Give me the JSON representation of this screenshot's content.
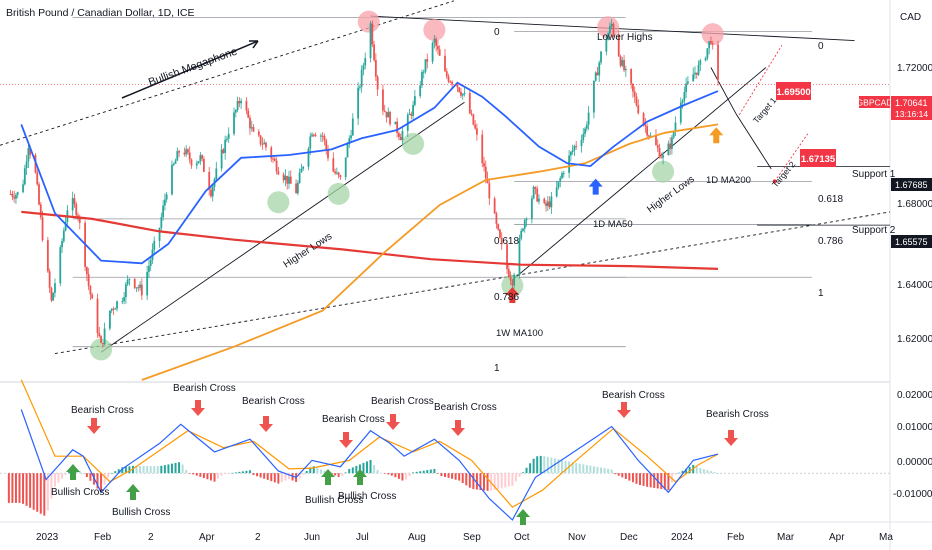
{
  "header": {
    "title": "British Pound / Canadian Dollar, 1D, ICE",
    "currency": "CAD"
  },
  "price_axis": {
    "ticks": [
      "1.72000",
      "1.70000",
      "1.68000",
      "1.66000",
      "1.64000",
      "1.62000"
    ],
    "symbol_tag": "GBPCAD",
    "current_price": "1.70641",
    "countdown": "13:16:14",
    "support1_price": "1.67685",
    "support2_price": "1.65575"
  },
  "macd_axis": {
    "ticks": [
      "0.02000",
      "0.01000",
      "0.00000",
      "-0.01000"
    ]
  },
  "time_axis": {
    "ticks": [
      "2023",
      "Feb",
      "2",
      "Apr",
      "2",
      "Jun",
      "Jul",
      "Aug",
      "Sep",
      "Oct",
      "Nov",
      "Dec",
      "2024",
      "Feb",
      "Mar",
      "Apr",
      "Ma"
    ]
  },
  "annotations": {
    "bullish_megaphone": "Bullish Megaphone",
    "lower_highs": "Lower Highs",
    "higher_lows_left": "Higher Lows",
    "higher_lows_right": "Higher Lows",
    "ma50": "1D MA50",
    "ma200": "1D MA200",
    "ma100w": "1W MA100",
    "target1": "Target 1",
    "target2": "Target 2",
    "target1_value": "1.69500",
    "target2_value": "1.67135",
    "support1": "Support 1",
    "support2": "Support 2"
  },
  "fib_left": {
    "top": "0",
    "mid": "0.618",
    "low": "0.786",
    "bottom": "1"
  },
  "fib_right": {
    "top": "0",
    "mid": "0.618",
    "low": "0.786",
    "bottom": "1"
  },
  "macd_labels": {
    "bear1": "Bearish Cross",
    "bear2": "Bearish Cross",
    "bear3": "Bearish Cross",
    "bear4": "Bearish Cross",
    "bear5": "Bearish Cross",
    "bear6": "Bearish Cross",
    "bear7": "Bearish Cross",
    "bear8": "Bearish Cross",
    "bull1": "Bullish Cross",
    "bull2": "Bullish Cross",
    "bull3": "Bullish Cross",
    "bull4": "Bullish Cross"
  },
  "colors": {
    "up": "#26a69a",
    "down": "#ef5350",
    "ma50": "#2962ff",
    "ma200": "#f59a23",
    "ma100w": "#e53935",
    "macd": "#2962ff",
    "signal": "#ff9800",
    "price_tag": "#f23645"
  },
  "chart_data": {
    "type": "candlestick",
    "symbol": "GBPCAD",
    "timeframe": "1D",
    "ylim": [
      1.6,
      1.735
    ],
    "macd_ylim": [
      -0.0115,
      0.021
    ],
    "close_path": [
      {
        "x": "2023-01-01",
        "y": 1.667
      },
      {
        "x": "2023-01-05",
        "y": 1.685
      },
      {
        "x": "2023-01-09",
        "y": 1.674
      },
      {
        "x": "2023-01-13",
        "y": 1.652
      },
      {
        "x": "2023-01-18",
        "y": 1.628
      },
      {
        "x": "2023-01-23",
        "y": 1.646
      },
      {
        "x": "2023-01-28",
        "y": 1.666
      },
      {
        "x": "2023-02-02",
        "y": 1.66
      },
      {
        "x": "2023-02-08",
        "y": 1.634
      },
      {
        "x": "2023-02-15",
        "y": 1.612
      },
      {
        "x": "2023-02-20",
        "y": 1.625
      },
      {
        "x": "2023-02-27",
        "y": 1.63
      },
      {
        "x": "2023-03-03",
        "y": 1.637
      },
      {
        "x": "2023-03-10",
        "y": 1.632
      },
      {
        "x": "2023-03-20",
        "y": 1.655
      },
      {
        "x": "2023-03-25",
        "y": 1.672
      },
      {
        "x": "2023-04-01",
        "y": 1.684
      },
      {
        "x": "2023-04-08",
        "y": 1.678
      },
      {
        "x": "2023-04-12",
        "y": 1.68
      },
      {
        "x": "2023-04-18",
        "y": 1.668
      },
      {
        "x": "2023-04-28",
        "y": 1.69
      },
      {
        "x": "2023-05-05",
        "y": 1.702
      },
      {
        "x": "2023-05-12",
        "y": 1.688
      },
      {
        "x": "2023-05-18",
        "y": 1.685
      },
      {
        "x": "2023-05-26",
        "y": 1.676
      },
      {
        "x": "2023-06-05",
        "y": 1.668
      },
      {
        "x": "2023-06-14",
        "y": 1.69
      },
      {
        "x": "2023-06-20",
        "y": 1.688
      },
      {
        "x": "2023-06-25",
        "y": 1.676
      },
      {
        "x": "2023-06-30",
        "y": 1.672
      },
      {
        "x": "2023-07-06",
        "y": 1.69
      },
      {
        "x": "2023-07-12",
        "y": 1.71
      },
      {
        "x": "2023-07-17",
        "y": 1.728
      },
      {
        "x": "2023-07-22",
        "y": 1.7
      },
      {
        "x": "2023-07-28",
        "y": 1.694
      },
      {
        "x": "2023-08-03",
        "y": 1.688
      },
      {
        "x": "2023-08-10",
        "y": 1.698
      },
      {
        "x": "2023-08-16",
        "y": 1.712
      },
      {
        "x": "2023-08-22",
        "y": 1.722
      },
      {
        "x": "2023-08-28",
        "y": 1.71
      },
      {
        "x": "2023-09-04",
        "y": 1.706
      },
      {
        "x": "2023-09-08",
        "y": 1.702
      },
      {
        "x": "2023-09-14",
        "y": 1.69
      },
      {
        "x": "2023-09-20",
        "y": 1.673
      },
      {
        "x": "2023-09-26",
        "y": 1.655
      },
      {
        "x": "2023-10-02",
        "y": 1.64
      },
      {
        "x": "2023-10-05",
        "y": 1.636
      },
      {
        "x": "2023-10-11",
        "y": 1.656
      },
      {
        "x": "2023-10-17",
        "y": 1.668
      },
      {
        "x": "2023-10-23",
        "y": 1.662
      },
      {
        "x": "2023-10-28",
        "y": 1.665
      },
      {
        "x": "2023-11-03",
        "y": 1.676
      },
      {
        "x": "2023-11-09",
        "y": 1.684
      },
      {
        "x": "2023-11-15",
        "y": 1.69
      },
      {
        "x": "2023-11-20",
        "y": 1.706
      },
      {
        "x": "2023-11-25",
        "y": 1.72
      },
      {
        "x": "2023-11-30",
        "y": 1.728
      },
      {
        "x": "2023-12-05",
        "y": 1.715
      },
      {
        "x": "2023-12-11",
        "y": 1.705
      },
      {
        "x": "2023-12-17",
        "y": 1.694
      },
      {
        "x": "2023-12-23",
        "y": 1.686
      },
      {
        "x": "2023-12-29",
        "y": 1.68
      },
      {
        "x": "2024-01-03",
        "y": 1.686
      },
      {
        "x": "2024-01-07",
        "y": 1.7
      },
      {
        "x": "2024-01-11",
        "y": 1.705
      },
      {
        "x": "2024-01-15",
        "y": 1.71
      },
      {
        "x": "2024-01-20",
        "y": 1.714
      },
      {
        "x": "2024-01-25",
        "y": 1.723
      },
      {
        "x": "2024-01-29",
        "y": 1.70641
      }
    ],
    "ma50": [
      {
        "x": "2023-01-01",
        "y": 1.692
      },
      {
        "x": "2023-01-20",
        "y": 1.66
      },
      {
        "x": "2023-02-15",
        "y": 1.643
      },
      {
        "x": "2023-03-10",
        "y": 1.642
      },
      {
        "x": "2023-03-25",
        "y": 1.649
      },
      {
        "x": "2023-04-15",
        "y": 1.668
      },
      {
        "x": "2023-05-05",
        "y": 1.68
      },
      {
        "x": "2023-06-01",
        "y": 1.681
      },
      {
        "x": "2023-06-25",
        "y": 1.683
      },
      {
        "x": "2023-07-12",
        "y": 1.687
      },
      {
        "x": "2023-08-01",
        "y": 1.69
      },
      {
        "x": "2023-08-22",
        "y": 1.698
      },
      {
        "x": "2023-09-04",
        "y": 1.707
      },
      {
        "x": "2023-09-18",
        "y": 1.702
      },
      {
        "x": "2023-10-01",
        "y": 1.695
      },
      {
        "x": "2023-10-20",
        "y": 1.684
      },
      {
        "x": "2023-11-05",
        "y": 1.678
      },
      {
        "x": "2023-11-18",
        "y": 1.677
      },
      {
        "x": "2023-12-01",
        "y": 1.684
      },
      {
        "x": "2023-12-20",
        "y": 1.693
      },
      {
        "x": "2024-01-10",
        "y": 1.699
      },
      {
        "x": "2024-01-29",
        "y": 1.704
      }
    ],
    "ma200": [
      {
        "x": "2023-03-10",
        "y": 1.6
      },
      {
        "x": "2023-05-01",
        "y": 1.612
      },
      {
        "x": "2023-06-20",
        "y": 1.625
      },
      {
        "x": "2023-07-25",
        "y": 1.646
      },
      {
        "x": "2023-08-25",
        "y": 1.663
      },
      {
        "x": "2023-09-20",
        "y": 1.672
      },
      {
        "x": "2023-10-20",
        "y": 1.675
      },
      {
        "x": "2023-11-15",
        "y": 1.678
      },
      {
        "x": "2023-12-10",
        "y": 1.685
      },
      {
        "x": "2023-12-30",
        "y": 1.689
      },
      {
        "x": "2024-01-29",
        "y": 1.692
      }
    ],
    "ma100w": [
      {
        "x": "2023-01-01",
        "y": 1.6605
      },
      {
        "x": "2023-02-10",
        "y": 1.658
      },
      {
        "x": "2023-03-20",
        "y": 1.6535
      },
      {
        "x": "2023-05-01",
        "y": 1.6505
      },
      {
        "x": "2023-07-01",
        "y": 1.647
      },
      {
        "x": "2023-08-20",
        "y": 1.6435
      },
      {
        "x": "2023-10-10",
        "y": 1.6415
      },
      {
        "x": "2023-12-10",
        "y": 1.641
      },
      {
        "x": "2024-01-29",
        "y": 1.64
      }
    ],
    "macd": [
      {
        "x": "2023-01-01",
        "y": 0.015
      },
      {
        "x": "2023-01-15",
        "y": -0.0015
      },
      {
        "x": "2023-01-30",
        "y": 0.0055
      },
      {
        "x": "2023-02-05",
        "y": 0.004
      },
      {
        "x": "2023-02-15",
        "y": -0.0045
      },
      {
        "x": "2023-02-27",
        "y": 0.001
      },
      {
        "x": "2023-03-20",
        "y": 0.007
      },
      {
        "x": "2023-04-01",
        "y": 0.0115
      },
      {
        "x": "2023-04-20",
        "y": 0.005
      },
      {
        "x": "2023-05-10",
        "y": 0.008
      },
      {
        "x": "2023-05-26",
        "y": 0.0005
      },
      {
        "x": "2023-06-05",
        "y": -0.001
      },
      {
        "x": "2023-06-14",
        "y": 0.003
      },
      {
        "x": "2023-06-30",
        "y": 0.0015
      },
      {
        "x": "2023-07-17",
        "y": 0.01
      },
      {
        "x": "2023-07-28",
        "y": 0.007
      },
      {
        "x": "2023-08-05",
        "y": 0.004
      },
      {
        "x": "2023-08-22",
        "y": 0.008
      },
      {
        "x": "2023-09-05",
        "y": 0.003
      },
      {
        "x": "2023-09-22",
        "y": -0.006
      },
      {
        "x": "2023-10-05",
        "y": -0.011
      },
      {
        "x": "2023-10-18",
        "y": -0.001
      },
      {
        "x": "2023-11-05",
        "y": 0.004
      },
      {
        "x": "2023-11-30",
        "y": 0.011
      },
      {
        "x": "2023-12-15",
        "y": 0.003
      },
      {
        "x": "2024-01-01",
        "y": -0.0045
      },
      {
        "x": "2024-01-15",
        "y": 0.003
      },
      {
        "x": "2024-01-29",
        "y": 0.0045
      }
    ],
    "signal": [
      {
        "x": "2023-01-01",
        "y": 0.022
      },
      {
        "x": "2023-01-20",
        "y": 0.004
      },
      {
        "x": "2023-02-05",
        "y": 0.004
      },
      {
        "x": "2023-02-20",
        "y": -0.002
      },
      {
        "x": "2023-03-05",
        "y": 0.001
      },
      {
        "x": "2023-04-05",
        "y": 0.01
      },
      {
        "x": "2023-04-25",
        "y": 0.006
      },
      {
        "x": "2023-05-12",
        "y": 0.0075
      },
      {
        "x": "2023-06-01",
        "y": 0.001
      },
      {
        "x": "2023-06-14",
        "y": 0.0012
      },
      {
        "x": "2023-07-05",
        "y": 0.003
      },
      {
        "x": "2023-07-22",
        "y": 0.0085
      },
      {
        "x": "2023-08-10",
        "y": 0.005
      },
      {
        "x": "2023-08-25",
        "y": 0.0075
      },
      {
        "x": "2023-09-12",
        "y": 0.003
      },
      {
        "x": "2023-10-05",
        "y": -0.008
      },
      {
        "x": "2023-10-22",
        "y": -0.004
      },
      {
        "x": "2023-11-10",
        "y": 0.003
      },
      {
        "x": "2023-12-01",
        "y": 0.0105
      },
      {
        "x": "2023-12-20",
        "y": 0.004
      },
      {
        "x": "2024-01-05",
        "y": -0.002
      },
      {
        "x": "2024-01-18",
        "y": 0.002
      },
      {
        "x": "2024-01-29",
        "y": 0.0045
      }
    ],
    "key_levels": {
      "support1": 1.67685,
      "support2": 1.65575,
      "target1": 1.695,
      "target2": 1.67135,
      "current": 1.70641
    },
    "fib_levels_left": [
      {
        "ratio": "0",
        "price": 1.7305
      },
      {
        "ratio": "0.618",
        "price": 1.658
      },
      {
        "ratio": "0.786",
        "price": 1.637
      },
      {
        "ratio": "1",
        "price": 1.612
      }
    ],
    "fib_levels_right": [
      {
        "ratio": "0",
        "price": 1.7255
      },
      {
        "ratio": "0.618",
        "price": 1.6715
      },
      {
        "ratio": "0.786",
        "price": 1.656
      },
      {
        "ratio": "1",
        "price": 1.637
      }
    ],
    "time_range": [
      "2022-12-20",
      "2024-05-05"
    ]
  }
}
